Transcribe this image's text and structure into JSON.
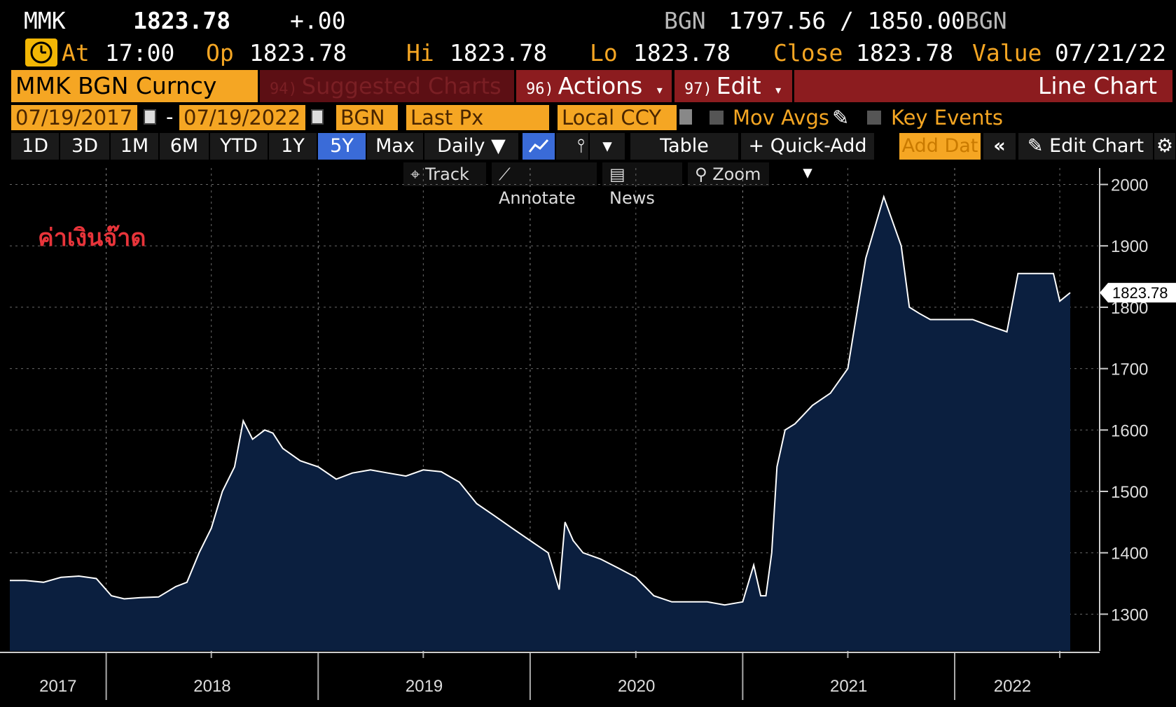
{
  "header": {
    "ticker": "MMK",
    "last": "1823.78",
    "change": "+.00",
    "bid_ccy": "BGN",
    "bid_ask": "1797.56 / 1850.00",
    "ask_ccy": "BGN"
  },
  "quote": {
    "at_label": "At",
    "at_time": "17:00",
    "op_label": "Op",
    "op_value": "1823.78",
    "hi_label": "Hi",
    "hi_value": "1823.78",
    "lo_label": "Lo",
    "lo_value": "1823.78",
    "close_label": "Close",
    "close_value": "1823.78",
    "value_label": "Value",
    "value_date": "07/21/22"
  },
  "function_bar": {
    "security": "MMK BGN Curncy",
    "suggested_num": "94)",
    "suggested_label": "Suggested Charts",
    "actions_num": "96)",
    "actions_label": "Actions",
    "edit_num": "97)",
    "edit_label": "Edit",
    "chart_type": "Line Chart"
  },
  "settings": {
    "start_date": "07/19/2017",
    "end_date": "07/19/2022",
    "currency": "BGN",
    "field": "Last Px",
    "ccy_mode": "Local CCY",
    "mov_avgs": "Mov Avgs",
    "key_events": "Key Events"
  },
  "range_bar": {
    "ranges": [
      "1D",
      "3D",
      "1M",
      "6M",
      "YTD",
      "1Y",
      "5Y",
      "Max"
    ],
    "selected": "5Y",
    "periodicity": "Daily",
    "table": "Table",
    "quick_add": "Quick-Add",
    "add_data": "Add Dat",
    "edit_chart": "Edit Chart"
  },
  "tools": {
    "track": "Track",
    "annotate": "Annotate",
    "news": "News",
    "zoom": "Zoom"
  },
  "colors": {
    "accent": "#f5a623",
    "function_red": "#8c1c1f",
    "selected_blue": "#3a6bd8",
    "area_fill": "#0b1f3f",
    "line": "#ffffff",
    "annotation": "#e8343a"
  },
  "icons": [
    "clock-icon",
    "calendar-icon",
    "line-chart-icon",
    "bar-chart-icon",
    "collapse-icon",
    "pencil-icon",
    "gear-icon",
    "crosshair-icon",
    "news-icon",
    "zoom-icon"
  ],
  "chart_data": {
    "type": "area",
    "annotation": "ค่าเงินจ๊าด",
    "last_label": "1823.78",
    "ylim": [
      1240,
      2020
    ],
    "y_ticks": [
      2000,
      1900,
      1800,
      1700,
      1600,
      1500,
      1400,
      1300
    ],
    "x_tick_labels": [
      "2017",
      "2018",
      "2019",
      "2020",
      "2021",
      "2022"
    ],
    "grid": true,
    "series": [
      {
        "x": [
          "2017-07-19",
          "2017-08-15",
          "2017-09-15",
          "2017-10-15",
          "2017-11-15",
          "2017-12-15",
          "2018-01-10",
          "2018-02-01",
          "2018-03-01",
          "2018-04-01",
          "2018-05-01",
          "2018-05-20",
          "2018-06-10",
          "2018-07-01",
          "2018-07-20",
          "2018-08-10",
          "2018-08-25",
          "2018-09-10",
          "2018-10-01",
          "2018-10-15",
          "2018-11-01",
          "2018-12-01",
          "2019-01-01",
          "2019-02-01",
          "2019-03-01",
          "2019-04-01",
          "2019-05-01",
          "2019-06-01",
          "2019-07-01",
          "2019-08-01",
          "2019-09-01",
          "2019-10-01",
          "2019-11-01",
          "2019-12-01",
          "2020-01-01",
          "2020-02-01",
          "2020-02-20",
          "2020-03-01",
          "2020-03-15",
          "2020-04-01",
          "2020-05-01",
          "2020-06-01",
          "2020-07-01",
          "2020-08-01",
          "2020-09-01",
          "2020-10-01",
          "2020-11-01",
          "2020-12-01",
          "2021-01-01",
          "2021-01-20",
          "2021-02-01",
          "2021-02-10",
          "2021-02-20",
          "2021-03-01",
          "2021-03-15",
          "2021-04-01",
          "2021-05-01",
          "2021-06-01",
          "2021-07-01",
          "2021-08-01",
          "2021-09-01",
          "2021-10-01",
          "2021-10-15",
          "2021-11-01",
          "2021-11-20",
          "2021-12-01",
          "2022-01-01",
          "2022-02-01",
          "2022-03-01",
          "2022-04-01",
          "2022-04-20",
          "2022-05-01",
          "2022-06-01",
          "2022-06-20",
          "2022-07-01",
          "2022-07-19"
        ],
        "y": [
          1355,
          1355,
          1352,
          1360,
          1362,
          1358,
          1330,
          1325,
          1327,
          1328,
          1345,
          1352,
          1400,
          1440,
          1500,
          1540,
          1615,
          1585,
          1600,
          1595,
          1570,
          1550,
          1540,
          1520,
          1530,
          1535,
          1530,
          1525,
          1535,
          1532,
          1515,
          1480,
          1460,
          1440,
          1420,
          1400,
          1340,
          1450,
          1420,
          1400,
          1390,
          1375,
          1360,
          1330,
          1320,
          1320,
          1320,
          1315,
          1320,
          1380,
          1330,
          1330,
          1400,
          1540,
          1600,
          1610,
          1640,
          1660,
          1700,
          1880,
          1980,
          1900,
          1800,
          1790,
          1780,
          1780,
          1780,
          1780,
          1770,
          1760,
          1855,
          1855,
          1855,
          1855,
          1810,
          1823.78
        ]
      }
    ]
  }
}
